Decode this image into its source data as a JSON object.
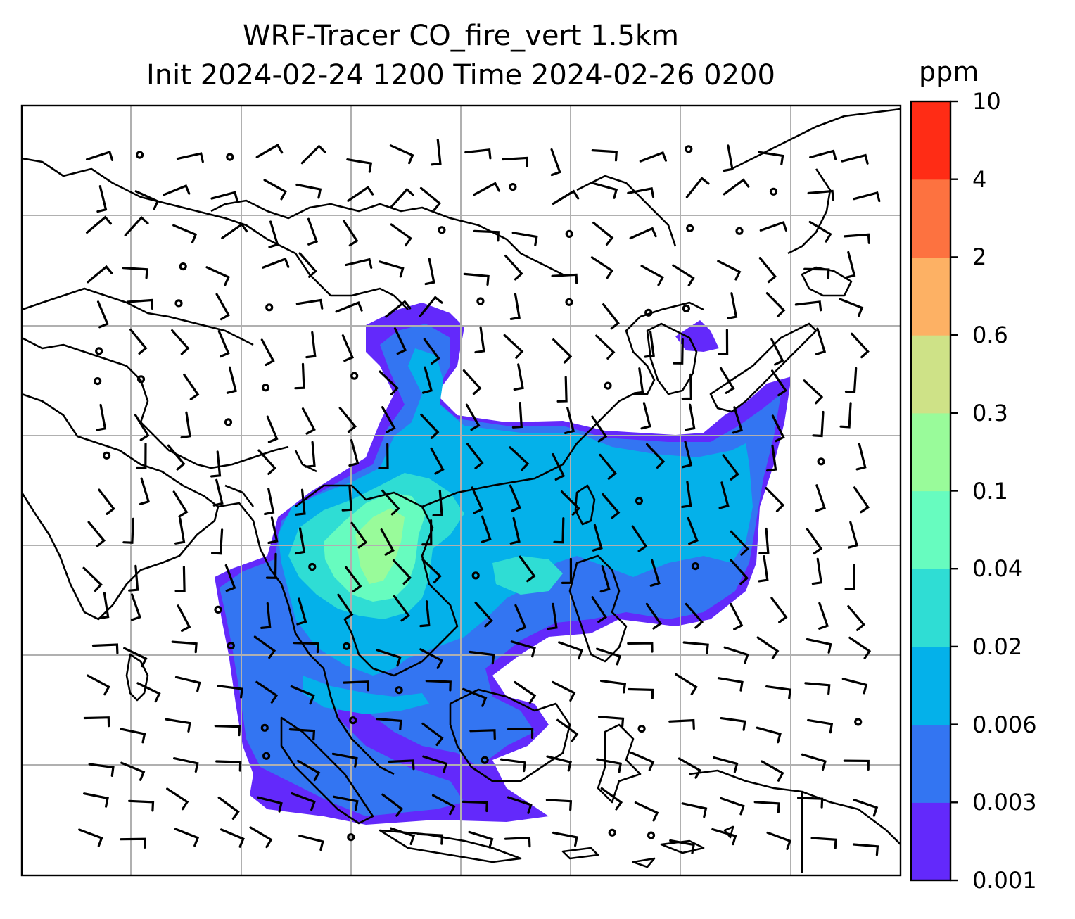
{
  "title_line1": "WRF-Tracer CO_fire_vert 1.5km",
  "title_line2": "Init 2024-02-24 1200 Time 2024-02-26 0200",
  "colorbar": {
    "unit": "ppm",
    "levels": [
      "0.001",
      "0.003",
      "0.006",
      "0.02",
      "0.04",
      "0.1",
      "0.3",
      "0.6",
      "2",
      "4",
      "10"
    ],
    "colors": [
      "#6329fb",
      "#3375f2",
      "#04b1ea",
      "#2fddd4",
      "#67fcbf",
      "#99fb9a",
      "#cee287",
      "#fdb164",
      "#fd7240",
      "#ff2c15"
    ]
  },
  "map": {
    "gridlines": true,
    "plume_colors": {
      "0.001": "#6329fb",
      "0.003": "#3375f2",
      "0.006": "#04b1ea",
      "0.02": "#2fddd4",
      "0.04": "#67fcbf",
      "0.1": "#99fb9a"
    },
    "coastline_color": "#000000",
    "grid_color": "#b0b0b0",
    "wind_barbs": true
  }
}
